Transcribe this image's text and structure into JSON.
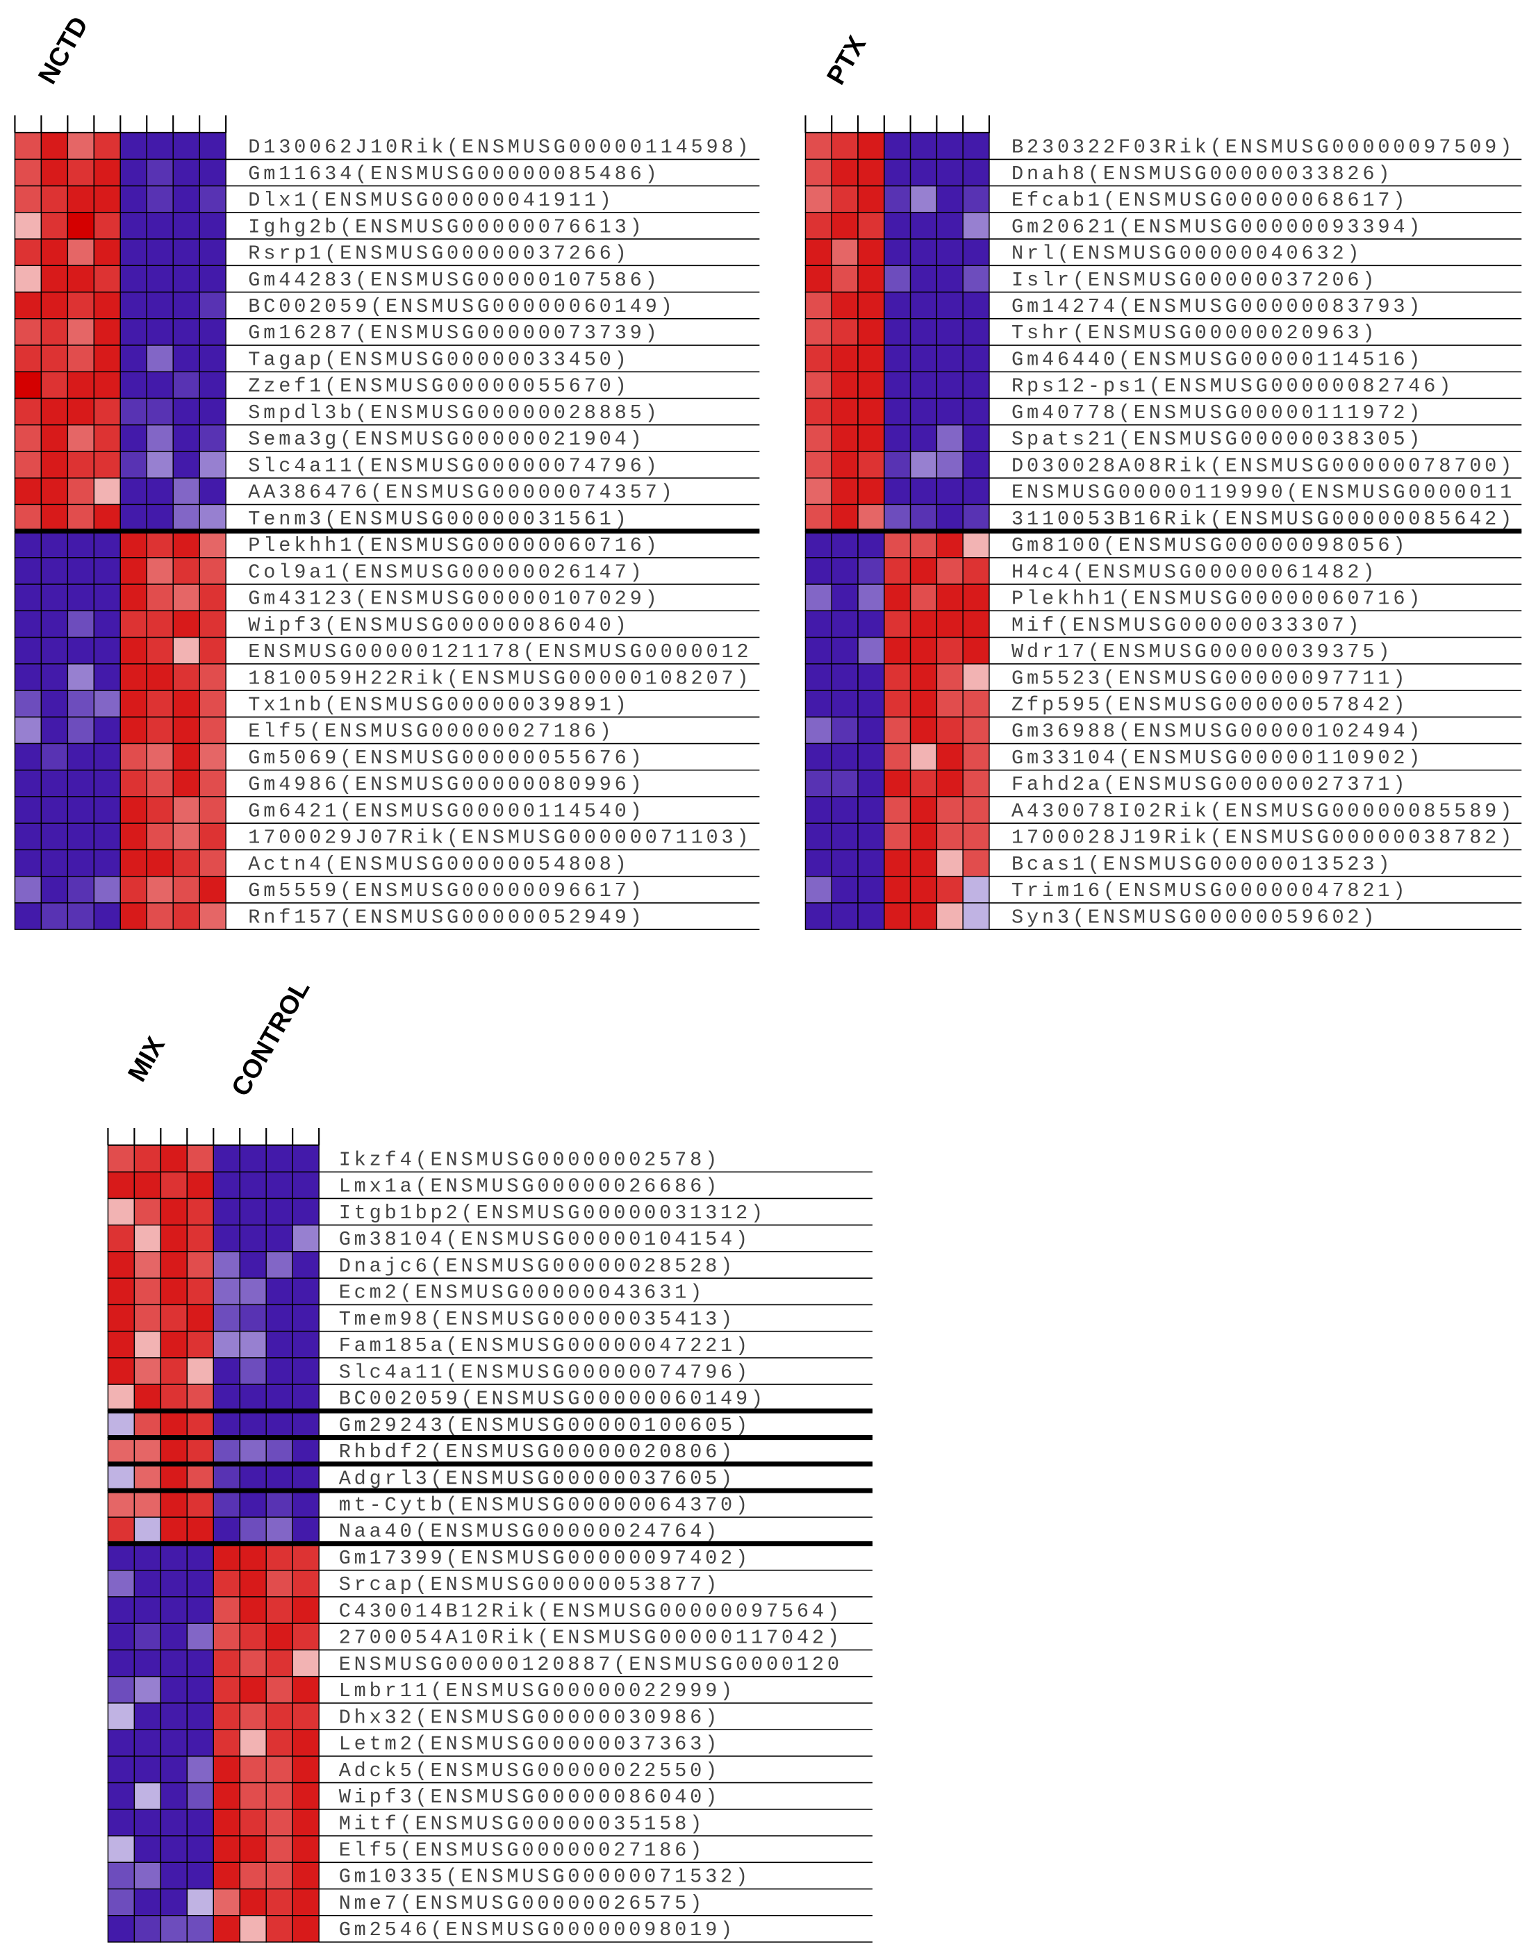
{
  "chart_data": [
    {
      "type": "heatmap",
      "column_labels": [
        "NCTD"
      ],
      "zlim": [
        -1,
        1
      ],
      "colors": [
        "#2e00a0",
        "#ffffff",
        "#d40000"
      ],
      "rows": [
        "D130062J10Rik(ENSMUSG00000114598)",
        "Gm11634(ENSMUSG00000085486)",
        "Dlx1(ENSMUSG00000041911)",
        "Ighg2b(ENSMUSG00000076613)",
        "Rsrp1(ENSMUSG00000037266)",
        "Gm44283(ENSMUSG00000107586)",
        "BC002059(ENSMUSG00000060149)",
        "Gm16287(ENSMUSG00000073739)",
        "Tagap(ENSMUSG00000033450)",
        "Zzef1(ENSMUSG00000055670)",
        "Smpdl3b(ENSMUSG00000028885)",
        "Sema3g(ENSMUSG00000021904)",
        "Slc4a11(ENSMUSG00000074796)",
        "AA386476(ENSMUSG00000074357)",
        "Tenm3(ENSMUSG00000031561)",
        "Plekhh1(ENSMUSG00000060716)",
        "Col9a1(ENSMUSG00000026147)",
        "Gm43123(ENSMUSG00000107029)",
        "Wipf3(ENSMUSG00000086040)",
        "ENSMUSG00000121178(ENSMUSG0000012",
        "1810059H22Rik(ENSMUSG00000108207)",
        "Tx1nb(ENSMUSG00000039891)",
        "Elf5(ENSMUSG00000027186)",
        "Gm5069(ENSMUSG00000055676)",
        "Gm4986(ENSMUSG00000080996)",
        "Gm6421(ENSMUSG00000114540)",
        "1700029J07Rik(ENSMUSG00000071103)",
        "Actn4(ENSMUSG00000054808)",
        "Gm5559(ENSMUSG00000096617)",
        "Rnf157(ENSMUSG00000052949)"
      ],
      "values": [
        [
          0.7,
          0.9,
          0.6,
          0.8,
          -0.9,
          -0.9,
          -0.9,
          -0.9
        ],
        [
          0.7,
          0.9,
          0.8,
          0.9,
          -0.9,
          -0.8,
          -0.9,
          -0.9
        ],
        [
          0.7,
          0.8,
          0.9,
          0.9,
          -0.9,
          -0.8,
          -0.9,
          -0.8
        ],
        [
          0.3,
          0.8,
          1,
          0.8,
          -0.9,
          -0.9,
          -0.9,
          -0.9
        ],
        [
          0.8,
          0.9,
          0.6,
          0.9,
          -0.9,
          -0.9,
          -0.9,
          -0.9
        ],
        [
          0.3,
          0.9,
          0.9,
          0.8,
          -0.9,
          -0.9,
          -0.9,
          -0.9
        ],
        [
          0.9,
          0.9,
          0.8,
          0.9,
          -0.9,
          -0.9,
          -0.9,
          -0.8
        ],
        [
          0.7,
          0.8,
          0.6,
          0.9,
          -0.9,
          -0.9,
          -0.9,
          -0.9
        ],
        [
          0.8,
          0.8,
          0.7,
          0.9,
          -0.9,
          -0.6,
          -0.9,
          -0.9
        ],
        [
          1,
          0.8,
          0.9,
          0.9,
          -0.9,
          -0.9,
          -0.8,
          -0.9
        ],
        [
          0.8,
          0.9,
          0.9,
          0.8,
          -0.8,
          -0.8,
          -0.9,
          -0.9
        ],
        [
          0.7,
          0.9,
          0.6,
          0.8,
          -0.9,
          -0.6,
          -0.9,
          -0.8
        ],
        [
          0.7,
          0.9,
          0.8,
          0.8,
          -0.8,
          -0.5,
          -0.9,
          -0.5
        ],
        [
          0.9,
          0.9,
          0.7,
          0.3,
          -0.9,
          -0.9,
          -0.6,
          -0.9
        ],
        [
          0.7,
          0.9,
          0.7,
          0.9,
          -0.9,
          -0.9,
          -0.6,
          -0.5
        ],
        [
          -0.9,
          -0.9,
          -0.9,
          -0.9,
          0.9,
          0.8,
          0.9,
          0.6
        ],
        [
          -0.9,
          -0.9,
          -0.9,
          -0.9,
          0.9,
          0.6,
          0.8,
          0.7
        ],
        [
          -0.9,
          -0.9,
          -0.9,
          -0.9,
          0.9,
          0.7,
          0.6,
          0.8
        ],
        [
          -0.9,
          -0.9,
          -0.7,
          -0.9,
          0.8,
          0.8,
          0.9,
          0.8
        ],
        [
          -0.9,
          -0.9,
          -0.9,
          -0.9,
          0.9,
          0.8,
          0.3,
          0.8
        ],
        [
          -0.9,
          -0.9,
          -0.5,
          -0.9,
          0.9,
          0.9,
          0.8,
          0.7
        ],
        [
          -0.7,
          -0.9,
          -0.7,
          -0.6,
          0.9,
          0.8,
          0.9,
          0.7
        ],
        [
          -0.5,
          -0.9,
          -0.7,
          -0.9,
          0.9,
          0.8,
          0.9,
          0.7
        ],
        [
          -0.9,
          -0.8,
          -0.9,
          -0.9,
          0.7,
          0.6,
          0.9,
          0.6
        ],
        [
          -0.9,
          -0.9,
          -0.9,
          -0.9,
          0.8,
          0.7,
          0.9,
          0.7
        ],
        [
          -0.9,
          -0.9,
          -0.9,
          -0.9,
          0.9,
          0.8,
          0.6,
          0.7
        ],
        [
          -0.9,
          -0.9,
          -0.9,
          -0.9,
          0.9,
          0.7,
          0.6,
          0.8
        ],
        [
          -0.9,
          -0.9,
          -0.9,
          -0.9,
          0.9,
          0.9,
          0.8,
          0.7
        ],
        [
          -0.6,
          -0.9,
          -0.8,
          -0.6,
          0.8,
          0.6,
          0.7,
          0.9
        ],
        [
          -0.9,
          -0.8,
          -0.8,
          -0.9,
          0.9,
          0.7,
          0.8,
          0.6
        ]
      ]
    },
    {
      "type": "heatmap",
      "column_labels": [
        "PTX"
      ],
      "zlim": [
        -1,
        1
      ],
      "colors": [
        "#2e00a0",
        "#ffffff",
        "#d40000"
      ],
      "rows": [
        "B230322F03Rik(ENSMUSG00000097509)",
        "Dnah8(ENSMUSG00000033826)",
        "Efcab1(ENSMUSG00000068617)",
        "Gm20621(ENSMUSG00000093394)",
        "Nrl(ENSMUSG00000040632)",
        "Islr(ENSMUSG00000037206)",
        "Gm14274(ENSMUSG00000083793)",
        "Tshr(ENSMUSG00000020963)",
        "Gm46440(ENSMUSG00000114516)",
        "Rps12-ps1(ENSMUSG00000082746)",
        "Gm40778(ENSMUSG00000111972)",
        "Spats21(ENSMUSG00000038305)",
        "D030028A08Rik(ENSMUSG00000078700)",
        "ENSMUSG00000119990(ENSMUSG0000011",
        "3110053B16Rik(ENSMUSG00000085642)",
        "Gm8100(ENSMUSG00000098056)",
        "H4c4(ENSMUSG00000061482)",
        "Plekhh1(ENSMUSG00000060716)",
        "Mif(ENSMUSG00000033307)",
        "Wdr17(ENSMUSG00000039375)",
        "Gm5523(ENSMUSG00000097711)",
        "Zfp595(ENSMUSG00000057842)",
        "Gm36988(ENSMUSG00000102494)",
        "Gm33104(ENSMUSG00000110902)",
        "Fahd2a(ENSMUSG00000027371)",
        "A430078I02Rik(ENSMUSG00000085589)",
        "1700028J19Rik(ENSMUSG00000038782)",
        "Bcas1(ENSMUSG00000013523)",
        "Trim16(ENSMUSG00000047821)",
        "Syn3(ENSMUSG00000059602)"
      ],
      "values": [
        [
          0.7,
          0.8,
          0.9,
          -0.9,
          -0.9,
          -0.9,
          -0.9
        ],
        [
          0.7,
          0.9,
          0.9,
          -0.9,
          -0.9,
          -0.9,
          -0.9
        ],
        [
          0.6,
          0.8,
          0.9,
          -0.8,
          -0.5,
          -0.9,
          -0.8
        ],
        [
          0.8,
          0.9,
          0.8,
          -0.9,
          -0.9,
          -0.9,
          -0.5
        ],
        [
          0.9,
          0.6,
          0.9,
          -0.9,
          -0.9,
          -0.9,
          -0.9
        ],
        [
          0.9,
          0.7,
          0.9,
          -0.7,
          -0.9,
          -0.9,
          -0.7
        ],
        [
          0.7,
          0.9,
          0.9,
          -0.9,
          -0.9,
          -0.9,
          -0.9
        ],
        [
          0.7,
          0.8,
          0.9,
          -0.9,
          -0.9,
          -0.9,
          -0.9
        ],
        [
          0.8,
          0.9,
          0.9,
          -0.9,
          -0.9,
          -0.9,
          -0.9
        ],
        [
          0.7,
          0.9,
          0.9,
          -0.9,
          -0.9,
          -0.9,
          -0.9
        ],
        [
          0.8,
          0.9,
          0.9,
          -0.9,
          -0.9,
          -0.9,
          -0.9
        ],
        [
          0.7,
          0.9,
          0.9,
          -0.9,
          -0.9,
          -0.6,
          -0.9
        ],
        [
          0.7,
          0.9,
          0.8,
          -0.8,
          -0.5,
          -0.6,
          -0.9
        ],
        [
          0.6,
          0.9,
          0.9,
          -0.9,
          -0.9,
          -0.9,
          -0.9
        ],
        [
          0.7,
          0.9,
          0.6,
          -0.7,
          -0.8,
          -0.9,
          -0.8
        ],
        [
          -0.9,
          -0.9,
          -0.9,
          0.7,
          0.7,
          0.9,
          0.3
        ],
        [
          -0.9,
          -0.9,
          -0.8,
          0.8,
          0.9,
          0.7,
          0.8
        ],
        [
          -0.6,
          -0.9,
          -0.6,
          0.9,
          0.7,
          0.9,
          0.9
        ],
        [
          -0.9,
          -0.9,
          -0.9,
          0.8,
          0.9,
          0.9,
          0.9
        ],
        [
          -0.9,
          -0.9,
          -0.6,
          0.9,
          0.9,
          0.8,
          0.9
        ],
        [
          -0.9,
          -0.9,
          -0.9,
          0.8,
          0.9,
          0.7,
          0.3
        ],
        [
          -0.9,
          -0.9,
          -0.9,
          0.8,
          0.9,
          0.7,
          0.7
        ],
        [
          -0.6,
          -0.8,
          -0.9,
          0.7,
          0.9,
          0.8,
          0.7
        ],
        [
          -0.9,
          -0.9,
          -0.9,
          0.7,
          0.3,
          0.9,
          0.7
        ],
        [
          -0.8,
          -0.8,
          -0.9,
          0.9,
          0.8,
          0.9,
          0.7
        ],
        [
          -0.9,
          -0.9,
          -0.9,
          0.7,
          0.9,
          0.7,
          0.7
        ],
        [
          -0.9,
          -0.9,
          -0.9,
          0.7,
          0.9,
          0.7,
          0.7
        ],
        [
          -0.9,
          -0.9,
          -0.9,
          0.9,
          0.9,
          0.3,
          0.7
        ],
        [
          -0.6,
          -0.9,
          -0.9,
          0.9,
          0.9,
          0.8,
          -0.3
        ],
        [
          -0.9,
          -0.9,
          -0.9,
          0.9,
          0.9,
          0.3,
          -0.3
        ]
      ]
    },
    {
      "type": "heatmap",
      "column_labels": [
        "MIX",
        "CONTROL"
      ],
      "zlim": [
        -1,
        1
      ],
      "colors": [
        "#2e00a0",
        "#ffffff",
        "#d40000"
      ],
      "rows": [
        "Ikzf4(ENSMUSG00000002578)",
        "Lmx1a(ENSMUSG00000026686)",
        "Itgb1bp2(ENSMUSG00000031312)",
        "Gm38104(ENSMUSG00000104154)",
        "Dnajc6(ENSMUSG00000028528)",
        "Ecm2(ENSMUSG00000043631)",
        "Tmem98(ENSMUSG00000035413)",
        "Fam185a(ENSMUSG00000047221)",
        "Slc4a11(ENSMUSG00000074796)",
        "BC002059(ENSMUSG00000060149)",
        "Gm29243(ENSMUSG00000100605)",
        "Rhbdf2(ENSMUSG00000020806)",
        "Adgrl3(ENSMUSG00000037605)",
        "mt-Cytb(ENSMUSG00000064370)",
        "Naa40(ENSMUSG00000024764)",
        "Gm17399(ENSMUSG00000097402)",
        "Srcap(ENSMUSG00000053877)",
        "C430014B12Rik(ENSMUSG00000097564)",
        "2700054A10Rik(ENSMUSG00000117042)",
        "ENSMUSG00000120887(ENSMUSG0000120",
        "Lmbr11(ENSMUSG00000022999)",
        "Dhx32(ENSMUSG00000030986)",
        "Letm2(ENSMUSG00000037363)",
        "Adck5(ENSMUSG00000022550)",
        "Wipf3(ENSMUSG00000086040)",
        "Mitf(ENSMUSG00000035158)",
        "Elf5(ENSMUSG00000027186)",
        "Gm10335(ENSMUSG00000071532)",
        "Nme7(ENSMUSG00000026575)",
        "Gm2546(ENSMUSG00000098019)"
      ],
      "values": [
        [
          0.7,
          0.8,
          0.9,
          0.7,
          -0.9,
          -0.9,
          -0.9,
          -0.9
        ],
        [
          0.9,
          0.9,
          0.8,
          0.9,
          -0.9,
          -0.9,
          -0.9,
          -0.9
        ],
        [
          0.3,
          0.7,
          0.9,
          0.8,
          -0.9,
          -0.9,
          -0.9,
          -0.9
        ],
        [
          0.8,
          0.3,
          0.9,
          0.8,
          -0.9,
          -0.9,
          -0.9,
          -0.5
        ],
        [
          0.9,
          0.6,
          0.9,
          0.7,
          -0.6,
          -0.9,
          -0.6,
          -0.9
        ],
        [
          0.9,
          0.7,
          0.9,
          0.8,
          -0.6,
          -0.6,
          -0.9,
          -0.9
        ],
        [
          0.9,
          0.7,
          0.8,
          0.9,
          -0.7,
          -0.8,
          -0.9,
          -0.9
        ],
        [
          0.9,
          0.3,
          0.9,
          0.8,
          -0.5,
          -0.5,
          -0.9,
          -0.9
        ],
        [
          0.9,
          0.6,
          0.8,
          0.3,
          -0.9,
          -0.7,
          -0.9,
          -0.9
        ],
        [
          0.3,
          0.9,
          0.8,
          0.7,
          -0.9,
          -0.9,
          -0.9,
          -0.9
        ],
        [
          -0.3,
          0.7,
          0.9,
          0.8,
          -0.9,
          -0.9,
          -0.9,
          -0.9
        ],
        [
          0.6,
          0.6,
          0.9,
          0.8,
          -0.7,
          -0.6,
          -0.7,
          -0.9
        ],
        [
          -0.3,
          0.6,
          0.9,
          0.7,
          -0.8,
          -0.9,
          -0.9,
          -0.9
        ],
        [
          0.6,
          0.6,
          0.9,
          0.8,
          -0.8,
          -0.9,
          -0.8,
          -0.9
        ],
        [
          0.8,
          -0.3,
          0.9,
          0.9,
          -0.9,
          -0.7,
          -0.6,
          -0.9
        ],
        [
          -0.9,
          -0.9,
          -0.9,
          -0.9,
          0.9,
          0.9,
          0.8,
          0.8
        ],
        [
          -0.6,
          -0.9,
          -0.9,
          -0.9,
          0.8,
          0.9,
          0.7,
          0.8
        ],
        [
          -0.9,
          -0.9,
          -0.9,
          -0.9,
          0.7,
          0.9,
          0.8,
          0.9
        ],
        [
          -0.9,
          -0.8,
          -0.9,
          -0.6,
          0.7,
          0.8,
          0.9,
          0.8
        ],
        [
          -0.9,
          -0.9,
          -0.9,
          -0.9,
          0.8,
          0.7,
          0.8,
          0.3
        ],
        [
          -0.7,
          -0.5,
          -0.9,
          -0.9,
          0.8,
          0.9,
          0.7,
          0.9
        ],
        [
          -0.3,
          -0.9,
          -0.9,
          -0.9,
          0.8,
          0.7,
          0.8,
          0.8
        ],
        [
          -0.9,
          -0.9,
          -0.9,
          -0.9,
          0.8,
          0.3,
          0.8,
          0.9
        ],
        [
          -0.9,
          -0.9,
          -0.9,
          -0.6,
          0.9,
          0.7,
          0.7,
          0.9
        ],
        [
          -0.9,
          -0.3,
          -0.9,
          -0.7,
          0.9,
          0.7,
          0.7,
          0.9
        ],
        [
          -0.9,
          -0.9,
          -0.9,
          -0.9,
          0.9,
          0.8,
          0.7,
          0.9
        ],
        [
          -0.3,
          -0.9,
          -0.9,
          -0.9,
          0.9,
          0.9,
          0.7,
          0.9
        ],
        [
          -0.7,
          -0.6,
          -0.9,
          -0.9,
          0.9,
          0.7,
          0.7,
          0.9
        ],
        [
          -0.7,
          -0.9,
          -0.9,
          -0.3,
          0.6,
          0.9,
          0.8,
          0.9
        ],
        [
          -0.9,
          -0.8,
          -0.7,
          -0.7,
          0.9,
          0.3,
          0.8,
          0.9
        ]
      ]
    }
  ]
}
